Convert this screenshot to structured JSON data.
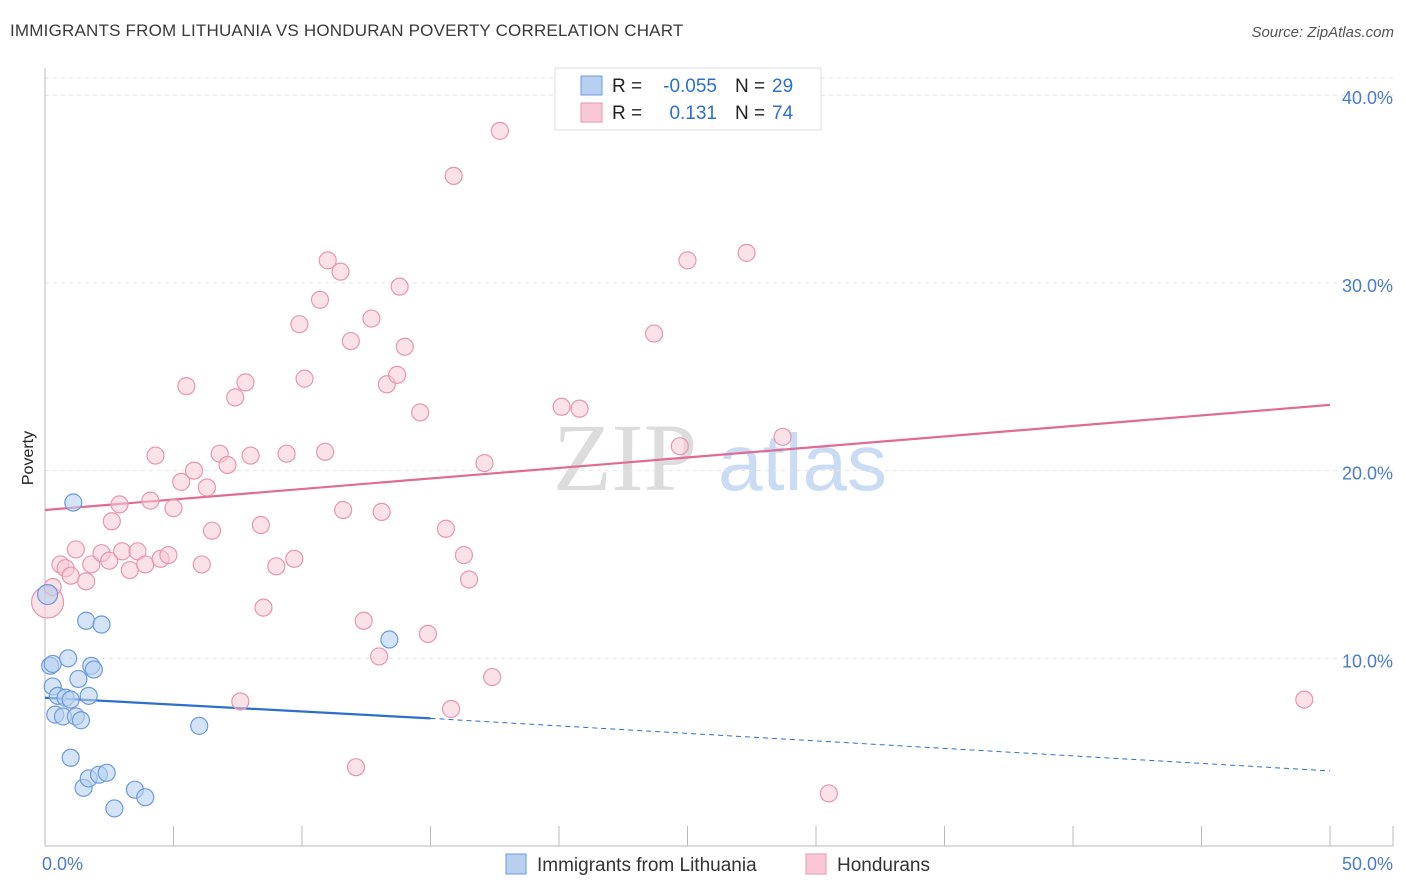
{
  "title": "IMMIGRANTS FROM LITHUANIA VS HONDURAN POVERTY CORRELATION CHART",
  "source": "Source: ZipAtlas.com",
  "watermark": {
    "zip": "ZIP",
    "atlas": "atlas"
  },
  "colors": {
    "blue_fill": "#b8d0f0",
    "blue_stroke": "#6b9be0",
    "blue_line": "#2e6fcc",
    "pink_fill": "#f8c8d6",
    "pink_stroke": "#e896b0",
    "pink_line": "#e06b94",
    "tick_text": "#4a7cc9"
  },
  "stats_legend": [
    {
      "r_label": "R =",
      "r_value": "-0.055",
      "n_label": "N =",
      "n_value": "29"
    },
    {
      "r_label": "R =",
      "r_value": "0.131",
      "n_label": "N =",
      "n_value": "74"
    }
  ],
  "chart_data": {
    "type": "scatter",
    "title": "IMMIGRANTS FROM LITHUANIA VS HONDURAN POVERTY CORRELATION CHART",
    "xlabel": "",
    "ylabel": "Poverty",
    "xlim": [
      0,
      50
    ],
    "ylim": [
      0,
      40
    ],
    "x_tick_labels": [
      "0.0%",
      "50.0%"
    ],
    "y_ticks": [
      10,
      20,
      30,
      40
    ],
    "y_tick_labels": [
      "10.0%",
      "20.0%",
      "30.0%",
      "40.0%"
    ],
    "grid": true,
    "legend_position": "bottom",
    "series": [
      {
        "name": "Immigrants from Lithuania",
        "trend": {
          "x0": 0,
          "y0": 7.9,
          "x1": 15,
          "y1": 6.8,
          "dashed_to_x": 50,
          "dashed_to_y": 4.0
        },
        "points": [
          [
            0.1,
            13.4
          ],
          [
            0.2,
            9.6
          ],
          [
            0.3,
            9.7
          ],
          [
            0.3,
            8.5
          ],
          [
            0.4,
            7.0
          ],
          [
            0.5,
            8.0
          ],
          [
            0.7,
            6.9
          ],
          [
            0.8,
            7.9
          ],
          [
            0.9,
            10.0
          ],
          [
            1.0,
            7.8
          ],
          [
            1.0,
            4.7
          ],
          [
            1.1,
            18.3
          ],
          [
            1.2,
            6.9
          ],
          [
            1.3,
            8.9
          ],
          [
            1.4,
            6.7
          ],
          [
            1.5,
            3.1
          ],
          [
            1.6,
            12.0
          ],
          [
            1.7,
            3.6
          ],
          [
            1.7,
            8.0
          ],
          [
            1.8,
            9.6
          ],
          [
            1.9,
            9.4
          ],
          [
            2.1,
            3.8
          ],
          [
            2.2,
            11.8
          ],
          [
            2.4,
            3.9
          ],
          [
            2.7,
            2.0
          ],
          [
            3.5,
            3.0
          ],
          [
            3.9,
            2.6
          ],
          [
            6.0,
            6.4
          ],
          [
            13.4,
            11.0
          ]
        ]
      },
      {
        "name": "Hondurans",
        "trend": {
          "x0": 0,
          "y0": 17.9,
          "x1": 50,
          "y1": 23.5
        },
        "points": [
          [
            0.1,
            13.0
          ],
          [
            0.3,
            13.8
          ],
          [
            0.6,
            15.0
          ],
          [
            0.8,
            14.8
          ],
          [
            1.0,
            14.4
          ],
          [
            1.2,
            15.8
          ],
          [
            1.6,
            14.1
          ],
          [
            1.8,
            15.0
          ],
          [
            2.2,
            15.6
          ],
          [
            2.5,
            15.2
          ],
          [
            2.6,
            17.3
          ],
          [
            2.9,
            18.2
          ],
          [
            3.0,
            15.7
          ],
          [
            3.3,
            14.7
          ],
          [
            3.6,
            15.7
          ],
          [
            3.9,
            15.0
          ],
          [
            4.1,
            18.4
          ],
          [
            4.3,
            20.8
          ],
          [
            4.5,
            15.3
          ],
          [
            4.8,
            15.5
          ],
          [
            5.0,
            18.0
          ],
          [
            5.3,
            19.4
          ],
          [
            5.5,
            24.5
          ],
          [
            5.8,
            20.0
          ],
          [
            6.1,
            15.0
          ],
          [
            6.3,
            19.1
          ],
          [
            6.5,
            16.8
          ],
          [
            6.8,
            20.9
          ],
          [
            7.1,
            20.3
          ],
          [
            7.4,
            23.9
          ],
          [
            7.6,
            7.7
          ],
          [
            7.8,
            24.7
          ],
          [
            8.0,
            20.8
          ],
          [
            8.4,
            17.1
          ],
          [
            8.5,
            12.7
          ],
          [
            9.0,
            14.9
          ],
          [
            9.4,
            20.9
          ],
          [
            9.7,
            15.3
          ],
          [
            9.9,
            27.8
          ],
          [
            10.1,
            24.9
          ],
          [
            10.7,
            29.1
          ],
          [
            10.9,
            21.0
          ],
          [
            11.0,
            31.2
          ],
          [
            11.5,
            30.6
          ],
          [
            11.6,
            17.9
          ],
          [
            11.9,
            26.9
          ],
          [
            12.1,
            4.2
          ],
          [
            12.4,
            12.0
          ],
          [
            12.7,
            28.1
          ],
          [
            13.0,
            10.1
          ],
          [
            13.1,
            17.8
          ],
          [
            13.3,
            24.6
          ],
          [
            13.7,
            25.1
          ],
          [
            13.8,
            29.8
          ],
          [
            14.0,
            26.6
          ],
          [
            14.6,
            23.1
          ],
          [
            14.9,
            11.3
          ],
          [
            15.6,
            16.9
          ],
          [
            15.8,
            7.3
          ],
          [
            15.9,
            35.7
          ],
          [
            16.3,
            15.5
          ],
          [
            16.5,
            14.2
          ],
          [
            17.1,
            20.4
          ],
          [
            17.4,
            9.0
          ],
          [
            17.7,
            38.1
          ],
          [
            20.1,
            23.4
          ],
          [
            20.8,
            23.3
          ],
          [
            23.7,
            27.3
          ],
          [
            24.7,
            21.3
          ],
          [
            25.0,
            31.2
          ],
          [
            27.3,
            31.6
          ],
          [
            28.7,
            21.8
          ],
          [
            30.5,
            2.8
          ],
          [
            49.0,
            7.8
          ]
        ]
      }
    ]
  },
  "bottom_legend": [
    "Immigrants from Lithuania",
    "Hondurans"
  ]
}
